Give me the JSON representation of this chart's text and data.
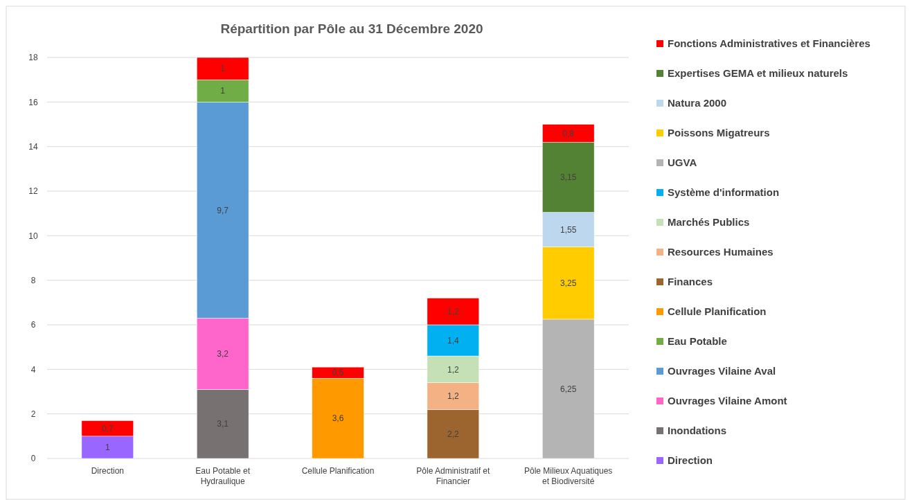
{
  "chart_data": {
    "type": "bar",
    "stacked": true,
    "title": "Répartition par Pôle au 31 Décembre 2020",
    "categories": [
      "Direction",
      "Eau Potable et Hydraulique",
      "Cellule Planification",
      "Pôle Administratif et Financier",
      "Pôle Milieux Aquatiques et Biodiversité"
    ],
    "ylim": [
      0,
      18
    ],
    "yticks": [
      0,
      2,
      4,
      6,
      8,
      10,
      12,
      14,
      16,
      18
    ],
    "grid": "y",
    "legend": "right",
    "series": [
      {
        "name": "Direction",
        "color": "#9966ff",
        "values": [
          1,
          null,
          null,
          null,
          null
        ],
        "value_labels": [
          "1",
          null,
          null,
          null,
          null
        ]
      },
      {
        "name": "Inondations",
        "color": "#777171",
        "values": [
          null,
          3.1,
          null,
          null,
          null
        ],
        "value_labels": [
          null,
          "3,1",
          null,
          null,
          null
        ]
      },
      {
        "name": "Ouvrages Vilaine Amont",
        "color": "#ff66cc",
        "values": [
          null,
          3.2,
          null,
          null,
          null
        ],
        "value_labels": [
          null,
          "3,2",
          null,
          null,
          null
        ]
      },
      {
        "name": "Ouvrages Vilaine Aval",
        "color": "#5b9bd5",
        "values": [
          null,
          9.7,
          null,
          null,
          null
        ],
        "value_labels": [
          null,
          "9,7",
          null,
          null,
          null
        ]
      },
      {
        "name": "Eau Potable",
        "color": "#70ad47",
        "values": [
          null,
          1,
          null,
          null,
          null
        ],
        "value_labels": [
          null,
          "1",
          null,
          null,
          null
        ]
      },
      {
        "name": "Cellule Planification",
        "color": "#ff9900",
        "values": [
          null,
          null,
          3.6,
          null,
          null
        ],
        "value_labels": [
          null,
          null,
          "3,6",
          null,
          null
        ]
      },
      {
        "name": "Finances",
        "color": "#9c6530",
        "values": [
          null,
          null,
          null,
          2.2,
          null
        ],
        "value_labels": [
          null,
          null,
          null,
          "2,2",
          null
        ]
      },
      {
        "name": "Resources Humaines",
        "color": "#f4b183",
        "values": [
          null,
          null,
          null,
          1.2,
          null
        ],
        "value_labels": [
          null,
          null,
          null,
          "1,2",
          null
        ]
      },
      {
        "name": "Marchés Publics",
        "color": "#c5e0b4",
        "values": [
          null,
          null,
          null,
          1.2,
          null
        ],
        "value_labels": [
          null,
          null,
          null,
          "1,2",
          null
        ]
      },
      {
        "name": "Système d'information",
        "color": "#00b0f0",
        "values": [
          null,
          null,
          null,
          1.4,
          null
        ],
        "value_labels": [
          null,
          null,
          null,
          "1,4",
          null
        ]
      },
      {
        "name": "UGVA",
        "color": "#b4b4b4",
        "values": [
          null,
          null,
          null,
          null,
          6.25
        ],
        "value_labels": [
          null,
          null,
          null,
          null,
          "6,25"
        ]
      },
      {
        "name": "Poissons Migatreurs",
        "color": "#ffcc00",
        "values": [
          null,
          null,
          null,
          null,
          3.25
        ],
        "value_labels": [
          null,
          null,
          null,
          null,
          "3,25"
        ]
      },
      {
        "name": "Natura 2000",
        "color": "#bdd7ee",
        "values": [
          null,
          null,
          null,
          null,
          1.55
        ],
        "value_labels": [
          null,
          null,
          null,
          null,
          "1,55"
        ]
      },
      {
        "name": "Expertises GEMA et milieux naturels",
        "color": "#548235",
        "values": [
          null,
          null,
          null,
          null,
          3.15
        ],
        "value_labels": [
          null,
          null,
          null,
          null,
          "3,15"
        ]
      },
      {
        "name": "Fonctions Administratives et Financières",
        "color": "#ff0000",
        "values": [
          0.7,
          1,
          0.5,
          1.2,
          0.8
        ],
        "value_labels": [
          "0,7",
          "1",
          "0,5",
          "1,2",
          "0,8"
        ]
      }
    ]
  }
}
